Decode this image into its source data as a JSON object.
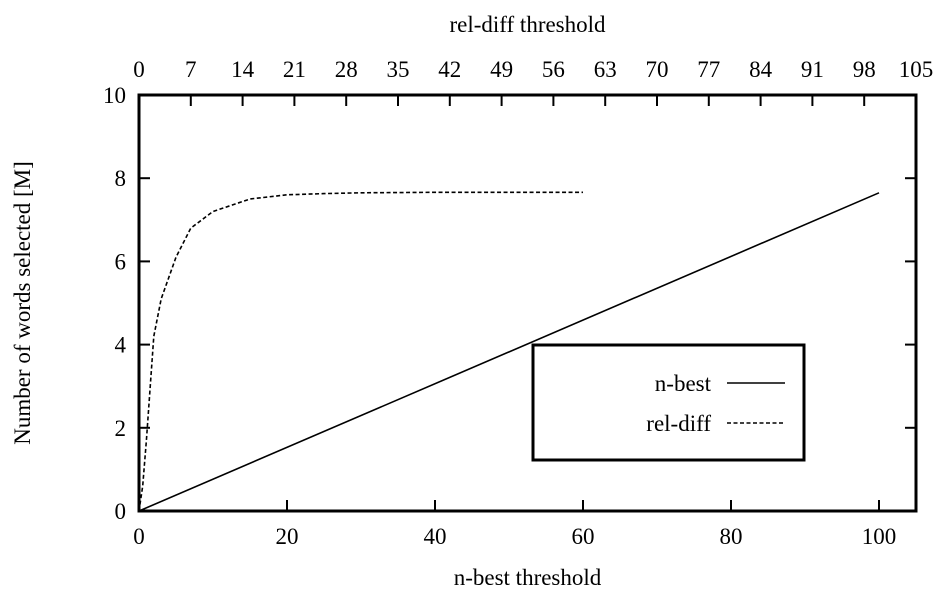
{
  "chart_data": {
    "type": "line",
    "xlabel": "n-best threshold",
    "x2label": "rel-diff threshold",
    "ylabel": "Number of words selected [M]",
    "xlim": [
      0,
      105
    ],
    "x2lim": [
      0,
      105
    ],
    "ylim": [
      0,
      10
    ],
    "x_ticks": [
      0,
      20,
      40,
      60,
      80,
      100
    ],
    "x2_ticks": [
      0,
      7,
      14,
      21,
      28,
      35,
      42,
      49,
      56,
      63,
      70,
      77,
      84,
      91,
      98,
      105
    ],
    "y_ticks": [
      0,
      2,
      4,
      6,
      8,
      10
    ],
    "grid": false,
    "legend_position": "center-right",
    "series": [
      {
        "name": "n-best",
        "axis": "bottom",
        "dash": "solid",
        "x": [
          0,
          100
        ],
        "y": [
          0,
          7.65
        ]
      },
      {
        "name": "rel-diff",
        "axis": "top",
        "dash": "dashed",
        "x": [
          0,
          0.5,
          1,
          2,
          3,
          5,
          7,
          10,
          15,
          20,
          25,
          30,
          40,
          50,
          60
        ],
        "y": [
          0,
          0.6,
          1.7,
          4.2,
          5.1,
          6.1,
          6.8,
          7.2,
          7.5,
          7.6,
          7.63,
          7.65,
          7.66,
          7.66,
          7.66
        ]
      }
    ]
  }
}
